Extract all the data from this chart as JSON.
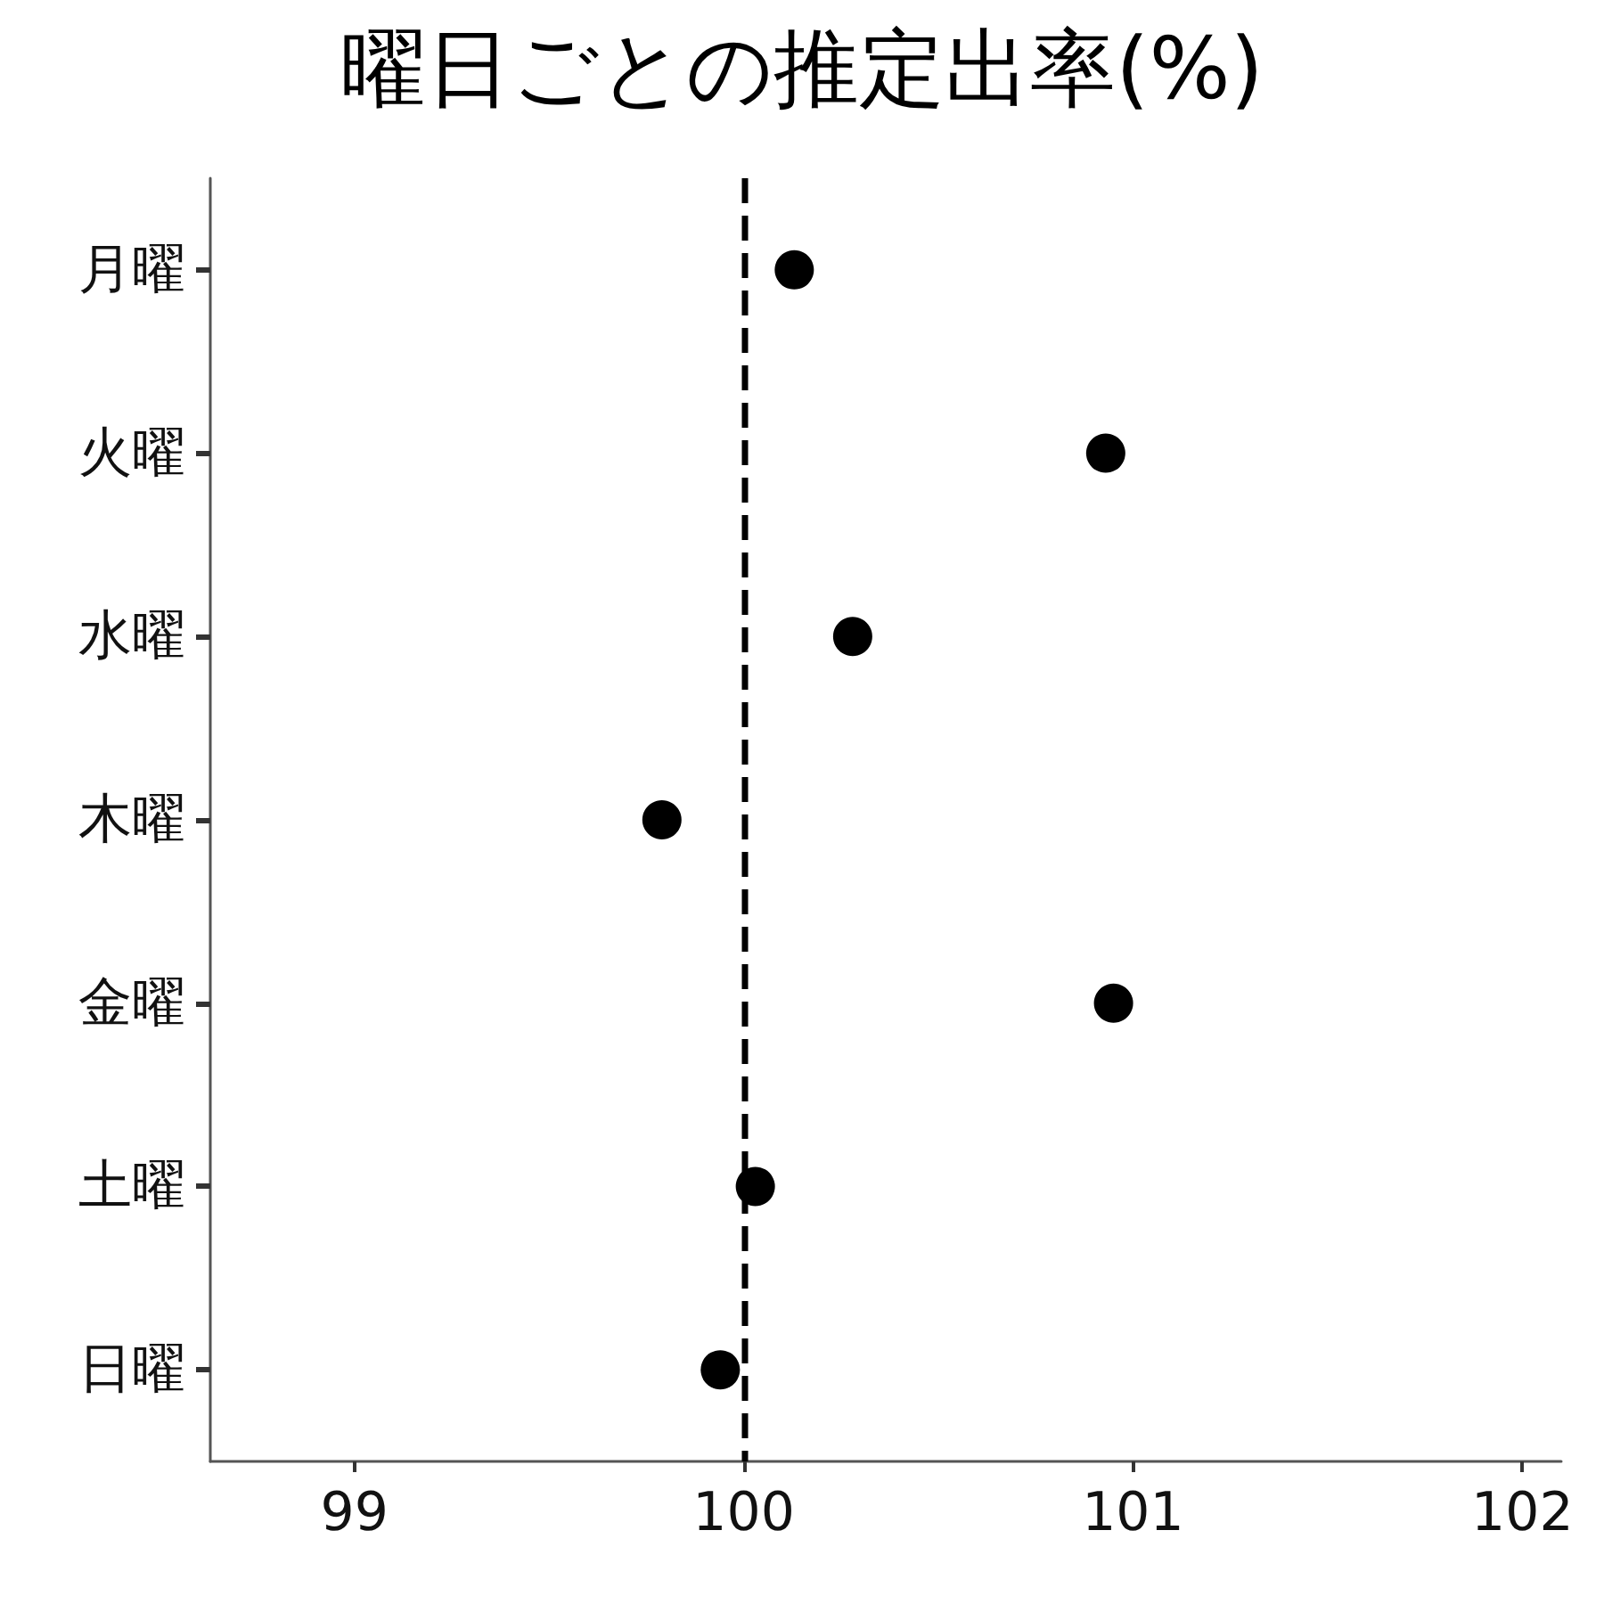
{
  "chart_data": {
    "type": "scatter",
    "title": "曜日ごとの推定出率(%)",
    "categories": [
      "月曜",
      "火曜",
      "水曜",
      "木曜",
      "金曜",
      "土曜",
      "日曜"
    ],
    "orientation": "horizontal",
    "series": [
      {
        "color": "#000000",
        "values": [
          100.13,
          100.93,
          100.28,
          99.79,
          100.95,
          100.03,
          99.94
        ]
      }
    ],
    "xlim": [
      98.63,
      102.1
    ],
    "xticks": [
      99,
      100,
      101,
      102
    ],
    "ref_lines": [
      {
        "axis": "x",
        "value": 100,
        "color": "#000000",
        "line_style": "dashed"
      }
    ],
    "marker": "circle"
  }
}
